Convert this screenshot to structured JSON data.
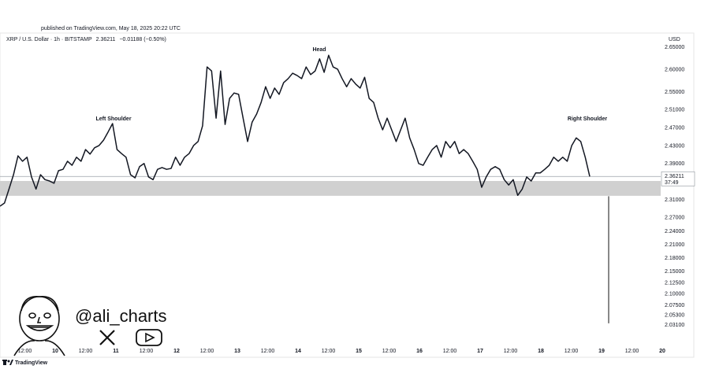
{
  "header": {
    "published": "published on TradingView.com, May 18, 2025 20:22 UTC",
    "symbol": "XRP / U.S. Dollar · 1h · BITSTAMP",
    "change": "−0.01188 (−0.50%)"
  },
  "chart_data": {
    "type": "line",
    "currency": "USD",
    "color": "#131722",
    "values": [
      2.296,
      2.303,
      2.334,
      2.366,
      2.408,
      2.396,
      2.405,
      2.361,
      2.334,
      2.366,
      2.355,
      2.352,
      2.347,
      2.375,
      2.378,
      2.396,
      2.387,
      2.405,
      2.396,
      2.422,
      2.412,
      2.426,
      2.431,
      2.443,
      2.461,
      2.48,
      2.422,
      2.413,
      2.405,
      2.366,
      2.359,
      2.384,
      2.391,
      2.361,
      2.355,
      2.378,
      2.382,
      2.378,
      2.38,
      2.405,
      2.387,
      2.405,
      2.413,
      2.431,
      2.44,
      2.475,
      2.606,
      2.597,
      2.492,
      2.597,
      2.478,
      2.536,
      2.548,
      2.545,
      2.492,
      2.44,
      2.483,
      2.501,
      2.527,
      2.562,
      2.536,
      2.559,
      2.545,
      2.571,
      2.58,
      2.592,
      2.587,
      2.58,
      2.606,
      2.589,
      2.597,
      2.624,
      2.594,
      2.632,
      2.606,
      2.601,
      2.58,
      2.562,
      2.58,
      2.568,
      2.559,
      2.583,
      2.536,
      2.527,
      2.492,
      2.466,
      2.492,
      2.466,
      2.44,
      2.466,
      2.492,
      2.448,
      2.422,
      2.391,
      2.387,
      2.405,
      2.422,
      2.431,
      2.405,
      2.44,
      2.426,
      2.44,
      2.413,
      2.422,
      2.413,
      2.396,
      2.378,
      2.338,
      2.361,
      2.378,
      2.384,
      2.378,
      2.355,
      2.343,
      2.355,
      2.32,
      2.334,
      2.361,
      2.352,
      2.37,
      2.37,
      2.378,
      2.387,
      2.405,
      2.396,
      2.405,
      2.396,
      2.431,
      2.448,
      2.44,
      2.405,
      2.362
    ],
    "last_price": 2.36211,
    "countdown": "37:49",
    "support_zone": [
      2.319,
      2.352
    ],
    "support_color": "#d0d0d0",
    "projection": [
      2.318,
      2.035
    ],
    "annotations": [
      "Left Shoulder",
      "Head",
      "Right Shoulder"
    ],
    "ylim": [
      1.984,
      2.6675
    ],
    "yticks": [
      {
        "value": 2.65,
        "label": "2.65000"
      },
      {
        "value": 2.6,
        "label": "2.60000"
      },
      {
        "value": 2.55,
        "label": "2.55000"
      },
      {
        "value": 2.51,
        "label": "2.51000"
      },
      {
        "value": 2.47,
        "label": "2.47000"
      },
      {
        "value": 2.43,
        "label": "2.43000"
      },
      {
        "value": 2.39,
        "label": "2.39000"
      },
      {
        "value": 2.31,
        "label": "2.31000"
      },
      {
        "value": 2.27,
        "label": "2.27000"
      },
      {
        "value": 2.24,
        "label": "2.24000"
      },
      {
        "value": 2.21,
        "label": "2.21000"
      },
      {
        "value": 2.18,
        "label": "2.18000"
      },
      {
        "value": 2.15,
        "label": "2.15000"
      },
      {
        "value": 2.125,
        "label": "2.12500"
      },
      {
        "value": 2.1,
        "label": "2.10000"
      },
      {
        "value": 2.075,
        "label": "2.07500"
      },
      {
        "value": 2.053,
        "label": "2.05300"
      },
      {
        "value": 2.031,
        "label": "2.03100"
      }
    ],
    "x_tick_labels": [
      "12:00",
      "10",
      "12:00",
      "11",
      "12:00",
      "12",
      "12:00",
      "13",
      "12:00",
      "14",
      "12:00",
      "15",
      "12:00",
      "16",
      "12:00",
      "17",
      "12:00",
      "18",
      "12:00",
      "19",
      "12:00",
      "20"
    ]
  },
  "watermark": {
    "handle": "@ali_charts"
  },
  "footer": {
    "brand": "TradingView"
  }
}
